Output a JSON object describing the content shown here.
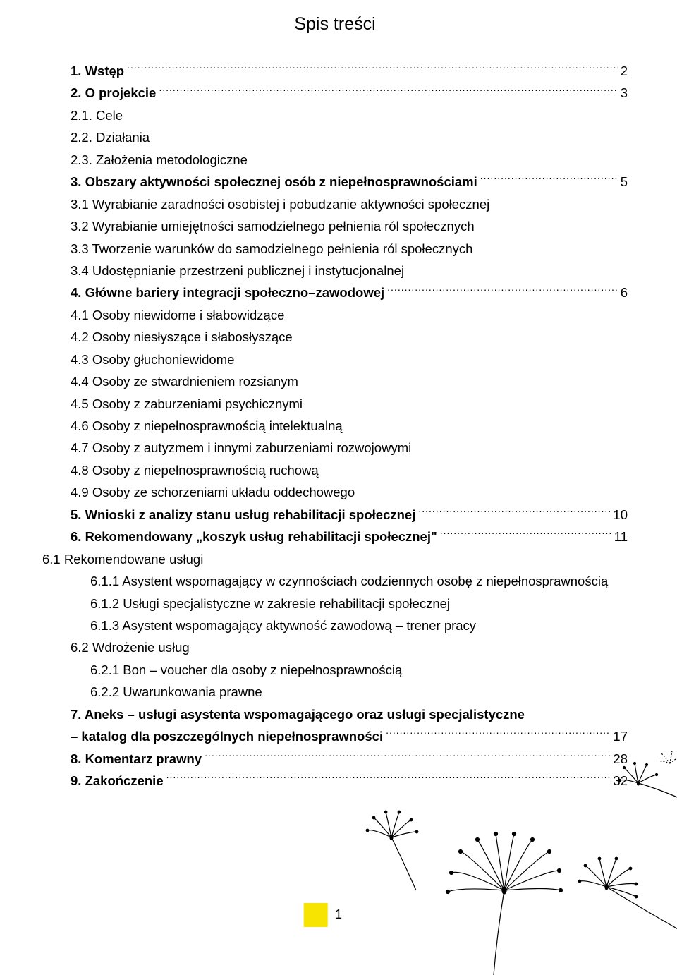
{
  "title": "Spis treści",
  "page_number": "1",
  "colors": {
    "highlight": "#f7e400",
    "text": "#000000",
    "background": "#ffffff"
  },
  "typography": {
    "title_fontsize_pt": 19,
    "body_fontsize_pt": 14,
    "font_family": "Myriad Pro / sans-serif",
    "bold_weight": 700
  },
  "entries": [
    {
      "label": "1. Wstęp",
      "page": "2",
      "bold": true,
      "indent": "ind1",
      "leader": true
    },
    {
      "label": "2. O projekcie",
      "page": "3",
      "bold": true,
      "indent": "ind1",
      "leader": true
    },
    {
      "label": "2.1. Cele",
      "bold": false,
      "indent": "normal-line"
    },
    {
      "label": "2.2. Działania",
      "bold": false,
      "indent": "normal-line"
    },
    {
      "label": "2.3. Założenia metodologiczne",
      "bold": false,
      "indent": "normal-line"
    },
    {
      "label": "3. Obszary aktywności społecznej osób z niepełnosprawnościami",
      "page": "5",
      "bold": true,
      "indent": "ind1",
      "leader": true
    },
    {
      "label": "3.1 Wyrabianie zaradności osobistej i pobudzanie aktywności społecznej",
      "bold": false,
      "indent": "normal-line"
    },
    {
      "label": "3.2 Wyrabianie umiejętności samodzielnego pełnienia ról społecznych",
      "bold": false,
      "indent": "normal-line"
    },
    {
      "label": "3.3 Tworzenie warunków do samodzielnego pełnienia ról społecznych",
      "bold": false,
      "indent": "normal-line"
    },
    {
      "label": "3.4 Udostępnianie przestrzeni publicznej i instytucjonalnej",
      "bold": false,
      "indent": "normal-line"
    },
    {
      "label": "4. Główne bariery integracji społeczno–zawodowej",
      "page": "6",
      "bold": true,
      "indent": "ind1",
      "leader": true
    },
    {
      "label": "4.1 Osoby niewidome i słabowidzące",
      "bold": false,
      "indent": "normal-line"
    },
    {
      "label": "4.2 Osoby niesłyszące i słabosłyszące",
      "bold": false,
      "indent": "normal-line"
    },
    {
      "label": "4.3 Osoby głuchoniewidome",
      "bold": false,
      "indent": "normal-line"
    },
    {
      "label": "4.4 Osoby ze stwardnieniem rozsianym",
      "bold": false,
      "indent": "normal-line"
    },
    {
      "label": "4.5 Osoby z zaburzeniami psychicznymi",
      "bold": false,
      "indent": "normal-line"
    },
    {
      "label": "4.6 Osoby z niepełnosprawnością intelektualną",
      "bold": false,
      "indent": "normal-line"
    },
    {
      "label": "4.7 Osoby z autyzmem i innymi zaburzeniami rozwojowymi",
      "bold": false,
      "indent": "normal-line"
    },
    {
      "label": "4.8 Osoby z niepełnosprawnością ruchową",
      "bold": false,
      "indent": "normal-line"
    },
    {
      "label": "4.9 Osoby ze schorzeniami układu oddechowego",
      "bold": false,
      "indent": "normal-line"
    },
    {
      "label": "5. Wnioski z analizy stanu usług rehabilitacji społecznej",
      "page": "10",
      "bold": true,
      "indent": "ind1",
      "leader": true
    },
    {
      "label": "6. Rekomendowany „koszyk usług rehabilitacji społecznej\"",
      "page": "11",
      "bold": true,
      "indent": "ind1",
      "leader": true
    },
    {
      "label": "6.1 Rekomendowane usługi",
      "bold": false,
      "indent": "normal-line0"
    },
    {
      "label": "6.1.1 Asystent wspomagający w czynnościach codziennych osobę z niepełnosprawnością",
      "bold": false,
      "indent": "ind2"
    },
    {
      "label": "6.1.2 Usługi specjalistyczne w zakresie rehabilitacji społecznej",
      "bold": false,
      "indent": "ind2"
    },
    {
      "label": "6.1.3 Asystent wspomagający aktywność zawodową – trener pracy",
      "bold": false,
      "indent": "ind2"
    },
    {
      "label": "6.2 Wdrożenie usług",
      "bold": false,
      "indent": "normal-line"
    },
    {
      "label": "6.2.1 Bon – voucher dla osoby z niepełnosprawnością",
      "bold": false,
      "indent": "ind2"
    },
    {
      "label": "6.2.2 Uwarunkowania prawne",
      "bold": false,
      "indent": "ind2"
    },
    {
      "label": "7. Aneks – usługi asystenta wspomagającego oraz usługi specjalistyczne",
      "bold": true,
      "indent": "ind1"
    },
    {
      "label": "– katalog dla poszczególnych niepełnosprawności",
      "page": "17",
      "bold": true,
      "indent": "ind1",
      "leader": true,
      "continuation": true
    },
    {
      "label": "8. Komentarz prawny",
      "page": "28",
      "bold": true,
      "indent": "ind1",
      "leader": true
    },
    {
      "label": "9. Zakończenie",
      "page": "32",
      "bold": true,
      "indent": "ind1",
      "leader": true
    }
  ]
}
